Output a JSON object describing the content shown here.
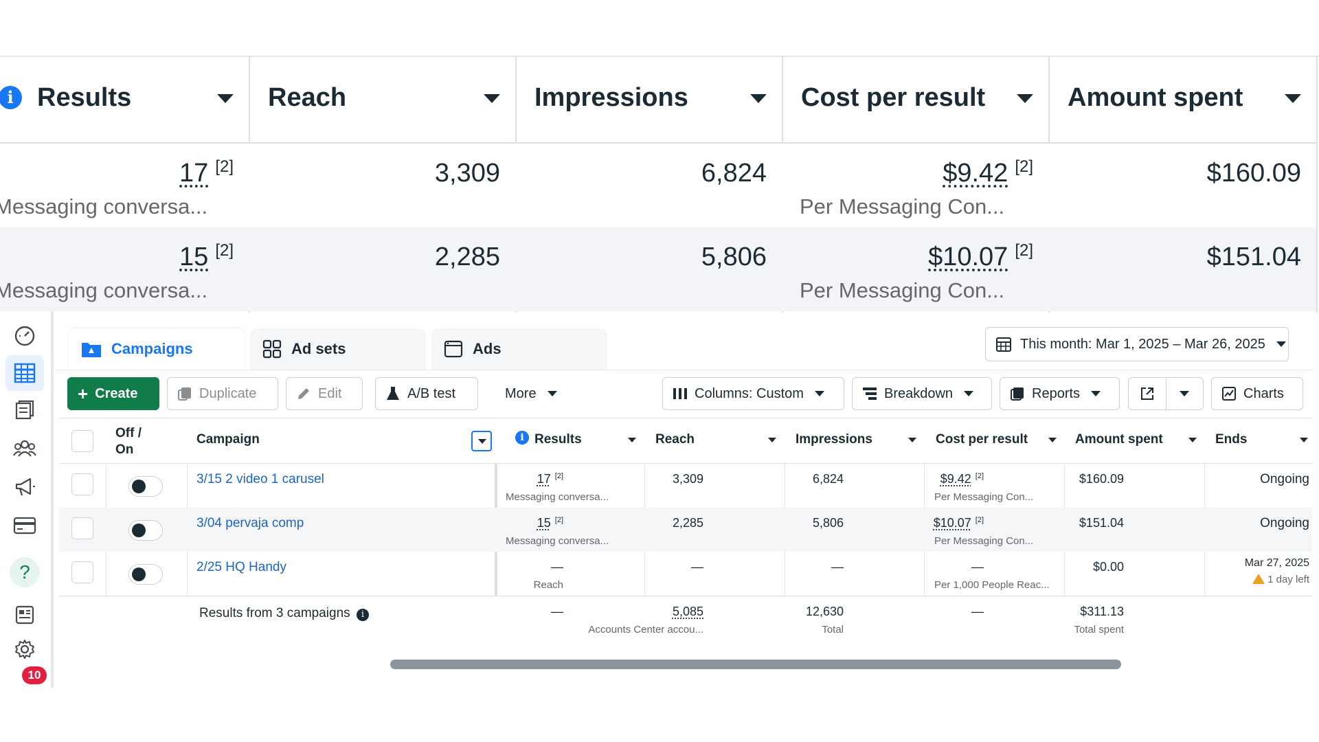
{
  "zoom": {
    "columns": [
      {
        "label": "Results"
      },
      {
        "label": "Reach"
      },
      {
        "label": "Impressions"
      },
      {
        "label": "Cost per result"
      },
      {
        "label": "Amount spent"
      }
    ],
    "rows": [
      {
        "results": "17",
        "results_note": "[2]",
        "results_sub": "Messaging conversa...",
        "reach": "3,309",
        "impressions": "6,824",
        "cost": "$9.42",
        "cost_note": "[2]",
        "cost_sub": "Per Messaging Con...",
        "spent": "$160.09"
      },
      {
        "results": "15",
        "results_note": "[2]",
        "results_sub": "Messaging conversa...",
        "reach": "2,285",
        "impressions": "5,806",
        "cost": "$10.07",
        "cost_note": "[2]",
        "cost_sub": "Per Messaging Con...",
        "spent": "$151.04"
      }
    ]
  },
  "nav": {
    "items": [
      {
        "icon": "dashboard-gauge-icon"
      },
      {
        "icon": "campaigns-table-icon",
        "active": true
      },
      {
        "icon": "pages-icon"
      },
      {
        "icon": "audiences-icon"
      },
      {
        "icon": "megaphone-icon"
      },
      {
        "icon": "billing-card-icon"
      },
      {
        "icon": "help-icon",
        "glyph": "?"
      },
      {
        "icon": "news-feed-icon"
      },
      {
        "icon": "settings-gear-icon"
      }
    ],
    "notification_count": "10"
  },
  "tabs": [
    {
      "label": "Campaigns",
      "active": true
    },
    {
      "label": "Ad sets"
    },
    {
      "label": "Ads"
    }
  ],
  "date_range": "This month: Mar 1, 2025 – Mar 26, 2025",
  "toolbar": {
    "create": "Create",
    "duplicate": "Duplicate",
    "edit": "Edit",
    "ab_test": "A/B test",
    "more": "More",
    "columns": "Columns: Custom",
    "breakdown": "Breakdown",
    "reports": "Reports",
    "charts": "Charts"
  },
  "table": {
    "headers": {
      "offon": "Off /\nOn",
      "campaign": "Campaign",
      "results": "Results",
      "reach": "Reach",
      "impressions": "Impressions",
      "cost": "Cost per result",
      "spent": "Amount spent",
      "ends": "Ends"
    },
    "rows": [
      {
        "name": "3/15 2 video 1 carusel",
        "results": "17",
        "results_note": "[2]",
        "results_sub": "Messaging conversa...",
        "reach": "3,309",
        "impressions": "6,824",
        "cost": "$9.42",
        "cost_note": "[2]",
        "cost_sub": "Per Messaging Con...",
        "spent": "$160.09",
        "ends": "Ongoing",
        "ends_sub": ""
      },
      {
        "name": "3/04 pervaja comp",
        "results": "15",
        "results_note": "[2]",
        "results_sub": "Messaging conversa...",
        "reach": "2,285",
        "impressions": "5,806",
        "cost": "$10.07",
        "cost_note": "[2]",
        "cost_sub": "Per Messaging Con...",
        "spent": "$151.04",
        "ends": "Ongoing",
        "ends_sub": ""
      },
      {
        "name": "2/25 HQ Handy",
        "results": "—",
        "results_note": "",
        "results_sub": "Reach",
        "reach": "—",
        "impressions": "—",
        "cost": "—",
        "cost_note": "",
        "cost_sub": "Per 1,000 People Reac...",
        "spent": "$0.00",
        "ends": "Mar 27, 2025",
        "ends_sub": "1 day left"
      }
    ],
    "total": {
      "label": "Results from 3 campaigns",
      "results": "—",
      "reach": "5,085",
      "reach_sub": "Accounts Center accou...",
      "impressions": "12,630",
      "impressions_sub": "Total",
      "cost": "—",
      "spent": "$311.13",
      "spent_sub": "Total spent"
    }
  }
}
